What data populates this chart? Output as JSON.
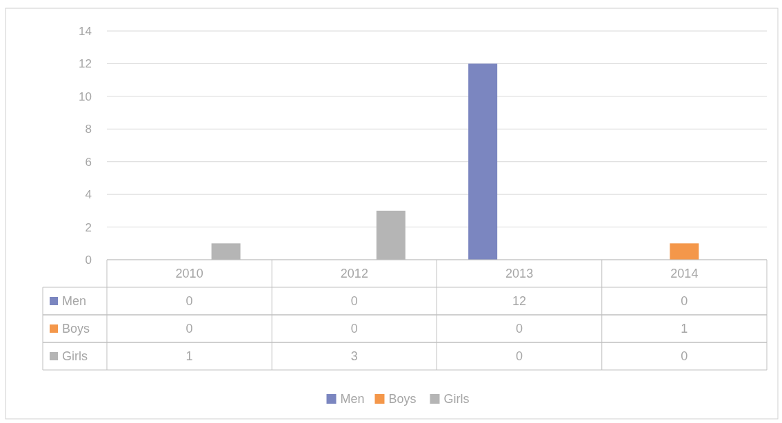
{
  "chart_data": {
    "type": "bar",
    "categories": [
      "2010",
      "2012",
      "2013",
      "2014"
    ],
    "series": [
      {
        "name": "Men",
        "color": "#7b86c0",
        "values": [
          0,
          0,
          12,
          0
        ]
      },
      {
        "name": "Boys",
        "color": "#f4974a",
        "values": [
          0,
          0,
          0,
          1
        ]
      },
      {
        "name": "Girls",
        "color": "#b5b5b5",
        "values": [
          1,
          3,
          0,
          0
        ]
      }
    ],
    "ylim": [
      0,
      14
    ],
    "yticks": [
      0,
      2,
      4,
      6,
      8,
      10,
      12,
      14
    ],
    "grid": "y",
    "legend": "bottom",
    "data_labels": true
  }
}
